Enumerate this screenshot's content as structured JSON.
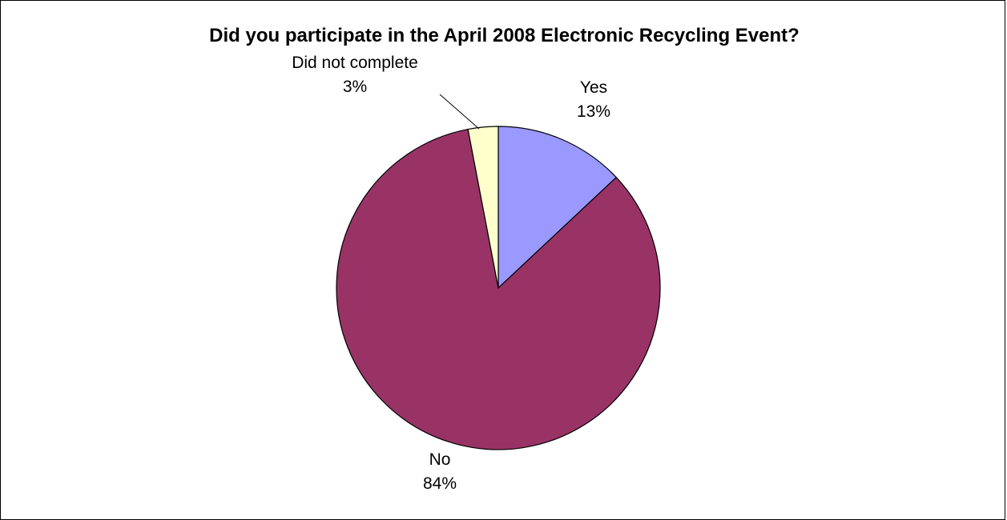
{
  "chart_data": {
    "type": "pie",
    "title": "Did you participate in the April 2008 Electronic Recycling Event?",
    "categories": [
      "Yes",
      "No",
      "Did not complete"
    ],
    "values": [
      13,
      84,
      3
    ],
    "value_labels": [
      "13%",
      "84%",
      "3%"
    ],
    "unit": "%",
    "colors": [
      "#9999FF",
      "#993366",
      "#FFFFCC"
    ],
    "legend": "none",
    "data_labels": "category name and percentage, outside slices"
  }
}
